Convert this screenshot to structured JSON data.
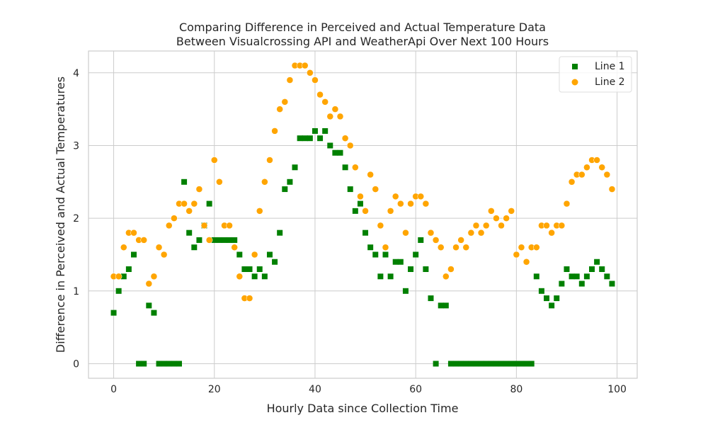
{
  "chart_data": {
    "type": "scatter",
    "title_lines": [
      "Comparing Difference in Perceived and Actual Temperature Data",
      "Between Visualcrossing API and WeatherApi Over Next 100 Hours"
    ],
    "xlabel": "Hourly Data since Collection Time",
    "ylabel": "Difference in Perceived and Actual Temperatures",
    "xlim": [
      -5,
      104
    ],
    "ylim": [
      -0.2,
      4.3
    ],
    "xticks": [
      0,
      20,
      40,
      60,
      80,
      100
    ],
    "yticks": [
      0,
      1,
      2,
      3,
      4
    ],
    "grid": true,
    "legend_position": "top-right",
    "x": [
      0,
      1,
      2,
      3,
      4,
      5,
      6,
      7,
      8,
      9,
      10,
      11,
      12,
      13,
      14,
      15,
      16,
      17,
      18,
      19,
      20,
      21,
      22,
      23,
      24,
      25,
      26,
      27,
      28,
      29,
      30,
      31,
      32,
      33,
      34,
      35,
      36,
      37,
      38,
      39,
      40,
      41,
      42,
      43,
      44,
      45,
      46,
      47,
      48,
      49,
      50,
      51,
      52,
      53,
      54,
      55,
      56,
      57,
      58,
      59,
      60,
      61,
      62,
      63,
      64,
      65,
      66,
      67,
      68,
      69,
      70,
      71,
      72,
      73,
      74,
      75,
      76,
      77,
      78,
      79,
      80,
      81,
      82,
      83,
      84,
      85,
      86,
      87,
      88,
      89,
      90,
      91,
      92,
      93,
      94,
      95,
      96,
      97,
      98,
      99
    ],
    "series": [
      {
        "name": "Line 1",
        "marker": "square",
        "color": "#008000",
        "values": [
          0.7,
          1.0,
          1.2,
          1.3,
          1.5,
          0,
          0,
          0.8,
          0.7,
          0,
          0,
          0,
          0,
          0,
          2.5,
          1.8,
          1.6,
          1.7,
          1.9,
          2.2,
          1.7,
          1.7,
          1.7,
          1.7,
          1.7,
          1.5,
          1.3,
          1.3,
          1.2,
          1.3,
          1.2,
          1.5,
          1.4,
          1.8,
          2.4,
          2.5,
          2.7,
          3.1,
          3.1,
          3.1,
          3.2,
          3.1,
          3.2,
          3.0,
          2.9,
          2.9,
          2.7,
          2.4,
          2.1,
          2.2,
          1.8,
          1.6,
          1.5,
          1.2,
          1.5,
          1.2,
          1.4,
          1.4,
          1.0,
          1.3,
          1.5,
          1.7,
          1.3,
          0.9,
          0,
          0.8,
          0.8,
          0,
          0,
          0,
          0,
          0,
          0,
          0,
          0,
          0,
          0,
          0,
          0,
          0,
          0,
          0,
          0,
          0,
          1.2,
          1.0,
          0.9,
          0.8,
          0.9,
          1.1,
          1.3,
          1.2,
          1.2,
          1.1,
          1.2,
          1.3,
          1.4,
          1.3,
          1.2,
          1.1
        ]
      },
      {
        "name": "Line 2",
        "marker": "circle",
        "color": "#ffa500",
        "values": [
          1.2,
          1.2,
          1.6,
          1.8,
          1.8,
          1.7,
          1.7,
          1.1,
          1.2,
          1.6,
          1.5,
          1.9,
          2.0,
          2.2,
          2.2,
          2.1,
          2.2,
          2.4,
          1.9,
          1.7,
          2.8,
          2.5,
          1.9,
          1.9,
          1.6,
          1.2,
          0.9,
          0.9,
          1.5,
          2.1,
          2.5,
          2.8,
          3.2,
          3.5,
          3.6,
          3.9,
          4.1,
          4.1,
          4.1,
          4.0,
          3.9,
          3.7,
          3.6,
          3.4,
          3.5,
          3.4,
          3.1,
          3.0,
          2.7,
          2.3,
          2.1,
          2.6,
          2.4,
          1.9,
          1.6,
          2.1,
          2.3,
          2.2,
          1.8,
          2.2,
          2.3,
          2.3,
          2.2,
          1.8,
          1.7,
          1.6,
          1.2,
          1.3,
          1.6,
          1.7,
          1.6,
          1.8,
          1.9,
          1.8,
          1.9,
          2.1,
          2.0,
          1.9,
          2.0,
          2.1,
          1.5,
          1.6,
          1.4,
          1.6,
          1.6,
          1.9,
          1.9,
          1.8,
          1.9,
          1.9,
          2.2,
          2.5,
          2.6,
          2.6,
          2.7,
          2.8,
          2.8,
          2.7,
          2.6,
          2.4
        ]
      }
    ]
  }
}
